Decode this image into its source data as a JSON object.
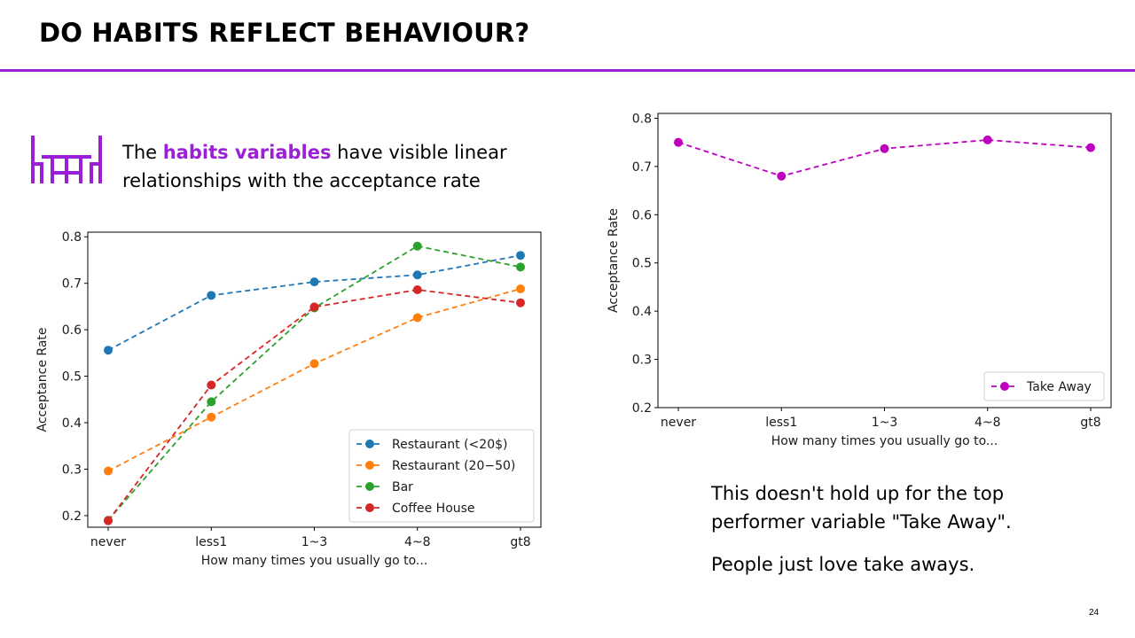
{
  "title": "DO HABITS REFLECT BEHAVIOUR?",
  "intro": {
    "prefix": "The ",
    "highlight": "habits variables",
    "suffix": " have visible linear relationships with the acceptance rate"
  },
  "notes": [
    "This doesn't hold up for the top performer variable \"Take Away\".",
    "People just love take aways."
  ],
  "page_number": "24",
  "colors": {
    "accent": "#9b1fd6"
  },
  "icons": {
    "intro_icon": "table-chairs-icon"
  },
  "chart_data": [
    {
      "type": "line",
      "categories": [
        "never",
        "less1",
        "1~3",
        "4~8",
        "gt8"
      ],
      "series": [
        {
          "name": "Restaurant (<20$)",
          "color": "#1f77b4",
          "values": [
            0.556,
            0.674,
            0.703,
            0.718,
            0.76
          ]
        },
        {
          "name": "Restaurant (20−50)",
          "color": "#ff7f0e",
          "values": [
            0.296,
            0.412,
            0.527,
            0.626,
            0.688
          ]
        },
        {
          "name": "Bar",
          "color": "#2ca02c",
          "values": [
            0.19,
            0.445,
            0.647,
            0.78,
            0.735
          ]
        },
        {
          "name": "Coffee House",
          "color": "#d62728",
          "values": [
            0.189,
            0.481,
            0.649,
            0.686,
            0.658
          ]
        }
      ],
      "xlabel": "How many times you usually go to...",
      "ylabel": "Acceptance Rate",
      "ylim": [
        0.175,
        0.81
      ],
      "yticks": [
        "0.2",
        "0.3",
        "0.4",
        "0.5",
        "0.6",
        "0.7",
        "0.8"
      ],
      "legend_position": "lower-right",
      "grid": false,
      "line_style": "dashed",
      "marker": "circle"
    },
    {
      "type": "line",
      "categories": [
        "never",
        "less1",
        "1~3",
        "4~8",
        "gt8"
      ],
      "series": [
        {
          "name": "Take Away",
          "color": "#bf00bf",
          "values": [
            0.75,
            0.68,
            0.737,
            0.755,
            0.739
          ]
        }
      ],
      "xlabel": "How many times you usually go to...",
      "ylabel": "Acceptance Rate",
      "ylim": [
        0.2,
        0.81
      ],
      "yticks": [
        "0.2",
        "0.3",
        "0.4",
        "0.5",
        "0.6",
        "0.7",
        "0.8"
      ],
      "legend_position": "lower-right",
      "grid": false,
      "line_style": "dashed",
      "marker": "circle"
    }
  ]
}
